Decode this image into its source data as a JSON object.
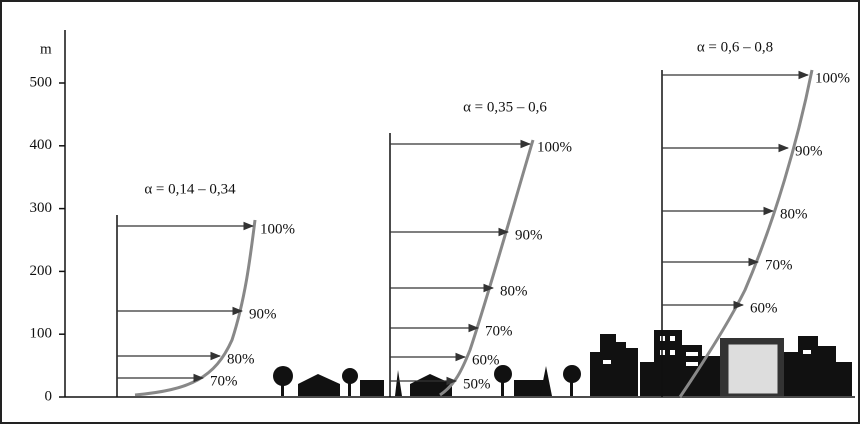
{
  "axis": {
    "unit": "m",
    "ticks": [
      "0",
      "100",
      "200",
      "300",
      "400",
      "500"
    ]
  },
  "profiles": [
    {
      "title": "α = 0,14 – 0,34",
      "levels": [
        "100%",
        "90%",
        "80%",
        "70%"
      ]
    },
    {
      "title": "α = 0,35 – 0,6",
      "levels": [
        "100%",
        "90%",
        "80%",
        "70%",
        "60%",
        "50%"
      ]
    },
    {
      "title": "α = 0,6 – 0,8",
      "levels": [
        "100%",
        "90%",
        "80%",
        "70%",
        "60%"
      ]
    }
  ]
}
